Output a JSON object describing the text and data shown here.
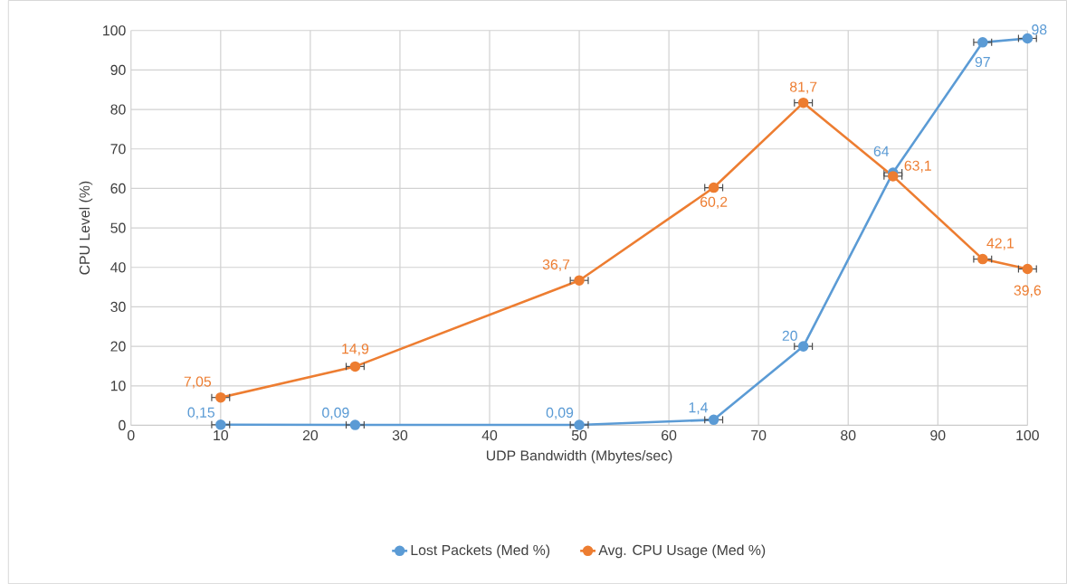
{
  "chart_data": {
    "type": "line",
    "xlabel": "UDP Bandwidth (Mbytes/sec)",
    "ylabel": "CPU Level  (%)",
    "x": [
      10,
      25,
      50,
      65,
      75,
      85,
      95,
      100
    ],
    "series": [
      {
        "name": "Lost Packets (Med %)",
        "color": "#5b9bd5",
        "values": [
          0.15,
          0.09,
          0.09,
          1.4,
          20,
          64,
          97,
          98
        ],
        "value_labels": [
          "0,15",
          "0,09",
          "0,09",
          "1,4",
          "20",
          "64",
          "97",
          "98"
        ],
        "xerrors": [
          1,
          1,
          1,
          1,
          1,
          1,
          1,
          1
        ]
      },
      {
        "name": "Avg. CPU Usage (Med %)",
        "color": "#ed7d31",
        "values": [
          7.05,
          14.9,
          36.7,
          60.2,
          81.7,
          63.1,
          42.1,
          39.6
        ],
        "value_labels": [
          "7,05",
          "14,9",
          "36,7",
          "60,2",
          "81,7",
          "63,1",
          "42,1",
          "39,6"
        ],
        "xerrors": [
          1,
          1,
          1,
          1,
          1,
          1,
          1,
          1
        ]
      }
    ],
    "xlim": [
      0,
      100
    ],
    "xticks": [
      0,
      10,
      20,
      30,
      40,
      50,
      60,
      70,
      80,
      90,
      100
    ],
    "ylim": [
      0,
      100
    ],
    "yticks": [
      0,
      10,
      20,
      30,
      40,
      50,
      60,
      70,
      80,
      90,
      100
    ],
    "grid": true,
    "legend": "bottom",
    "marker": "circle",
    "line_style": "solid"
  }
}
